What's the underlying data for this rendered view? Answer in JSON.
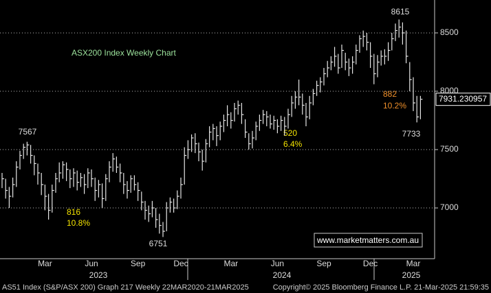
{
  "chart_data": {
    "type": "ohlc",
    "title": "ASX200 Index Weekly Chart",
    "categories": [
      null,
      null,
      null,
      null,
      null,
      null,
      null,
      null,
      null,
      null,
      null,
      null,
      "Mar",
      null,
      null,
      null,
      null,
      null,
      null,
      null,
      null,
      null,
      null,
      null,
      null,
      "Jun",
      null,
      null,
      null,
      null,
      null,
      null,
      null,
      null,
      null,
      null,
      null,
      null,
      "Sep",
      null,
      null,
      null,
      null,
      null,
      null,
      null,
      null,
      null,
      null,
      null,
      "Dec",
      null,
      null,
      null,
      null,
      null,
      null,
      null,
      null,
      null,
      null,
      null,
      null,
      null,
      "Mar",
      null,
      null,
      null,
      null,
      null,
      null,
      null,
      null,
      null,
      null,
      null,
      null,
      "Jun",
      null,
      null,
      null,
      null,
      null,
      null,
      null,
      null,
      null,
      null,
      null,
      null,
      "Sep",
      null,
      null,
      null,
      null,
      null,
      null,
      null,
      null,
      null,
      null,
      null,
      null,
      "Dec",
      null,
      null,
      null,
      null,
      null,
      null,
      null,
      null,
      null,
      null,
      null,
      "Mar",
      null,
      null
    ],
    "years": [
      "2023",
      "2024",
      "2025"
    ],
    "high": [
      7300,
      7250,
      7180,
      7260,
      7400,
      7490,
      7550,
      7567,
      7540,
      7450,
      7380,
      7300,
      7200,
      7120,
      7200,
      7300,
      7390,
      7400,
      7390,
      7330,
      7340,
      7320,
      7300,
      7290,
      7340,
      7330,
      7260,
      7240,
      7210,
      7290,
      7400,
      7470,
      7440,
      7380,
      7300,
      7230,
      7280,
      7280,
      7220,
      7140,
      7060,
      7020,
      7060,
      7000,
      6950,
      6880,
      7050,
      7090,
      7080,
      7150,
      7260,
      7520,
      7580,
      7630,
      7640,
      7560,
      7500,
      7590,
      7700,
      7720,
      7700,
      7740,
      7800,
      7880,
      7820,
      7900,
      7920,
      7900,
      7760,
      7640,
      7660,
      7740,
      7800,
      7840,
      7830,
      7800,
      7790,
      7760,
      7790,
      7780,
      7850,
      7960,
      8000,
      8100,
      7980,
      7900,
      7960,
      8020,
      8090,
      8120,
      8200,
      8260,
      8300,
      8380,
      8320,
      8400,
      8330,
      8280,
      8300,
      8400,
      8480,
      8520,
      8500,
      8420,
      8320,
      8310,
      8350,
      8360,
      8420,
      8500,
      8580,
      8615,
      8590,
      8520,
      8250,
      8120,
      7960,
      7960
    ],
    "low": [
      7170,
      7080,
      7000,
      7090,
      7180,
      7330,
      7420,
      7450,
      7380,
      7280,
      7200,
      7110,
      6980,
      6900,
      6960,
      7130,
      7220,
      7250,
      7230,
      7170,
      7180,
      7150,
      7180,
      7120,
      7170,
      7180,
      7060,
      7090,
      7000,
      7060,
      7220,
      7310,
      7300,
      7220,
      7120,
      7080,
      7130,
      7150,
      7060,
      6980,
      6900,
      6880,
      6920,
      6830,
      6780,
      6751,
      6800,
      6960,
      6960,
      6990,
      7080,
      7200,
      7420,
      7480,
      7470,
      7400,
      7320,
      7390,
      7520,
      7580,
      7530,
      7580,
      7650,
      7700,
      7680,
      7740,
      7800,
      7720,
      7600,
      7500,
      7510,
      7580,
      7660,
      7720,
      7700,
      7680,
      7670,
      7640,
      7660,
      7620,
      7680,
      7780,
      7850,
      7880,
      7800,
      7700,
      7760,
      7880,
      7960,
      7990,
      8050,
      8120,
      8180,
      8210,
      8150,
      8200,
      8180,
      8130,
      8150,
      8230,
      8330,
      8380,
      8350,
      8200,
      8060,
      8120,
      8220,
      8230,
      8260,
      8350,
      8430,
      8460,
      8400,
      8240,
      8000,
      7830,
      7733,
      7760
    ],
    "close": [
      7250,
      7150,
      7100,
      7200,
      7350,
      7450,
      7520,
      7540,
      7450,
      7380,
      7300,
      7200,
      7100,
      6980,
      7150,
      7250,
      7300,
      7370,
      7330,
      7250,
      7300,
      7220,
      7260,
      7200,
      7300,
      7250,
      7150,
      7200,
      7080,
      7250,
      7350,
      7420,
      7350,
      7300,
      7200,
      7150,
      7250,
      7200,
      7150,
      7050,
      6980,
      6950,
      7000,
      6900,
      6850,
      6800,
      7000,
      7050,
      7000,
      7100,
      7200,
      7450,
      7500,
      7600,
      7550,
      7480,
      7400,
      7550,
      7650,
      7680,
      7620,
      7700,
      7750,
      7800,
      7750,
      7850,
      7880,
      7800,
      7650,
      7550,
      7600,
      7700,
      7750,
      7800,
      7780,
      7720,
      7750,
      7700,
      7750,
      7700,
      7800,
      7900,
      7950,
      7950,
      7880,
      7780,
      7900,
      7980,
      8050,
      8080,
      8150,
      8200,
      8250,
      8300,
      8200,
      8350,
      8250,
      8200,
      8250,
      8350,
      8450,
      8470,
      8420,
      8300,
      8150,
      8250,
      8300,
      8300,
      8350,
      8450,
      8520,
      8550,
      8500,
      8300,
      8100,
      7900,
      7780,
      7931.230957
    ],
    "color": "#e6e6e6",
    "ylim": [
      6565,
      8782
    ],
    "yticks": [
      7000,
      7500,
      8000,
      8500
    ],
    "grid": true,
    "annotations": [
      "7567",
      "816",
      "10.8%",
      "6751",
      "520",
      "6.4%",
      "882",
      "10.2%",
      "8615",
      "7733"
    ],
    "watermark": "www.marketmatters.com.au",
    "footer": {
      "left": "AS51 Index (S&P/ASX 200) Graph 217  Weekly 22MAR2020-21MAR2025",
      "right": "Copyright© 2025 Bloomberg Finance L.P.    21-Mar-2025 21:59:35"
    }
  }
}
